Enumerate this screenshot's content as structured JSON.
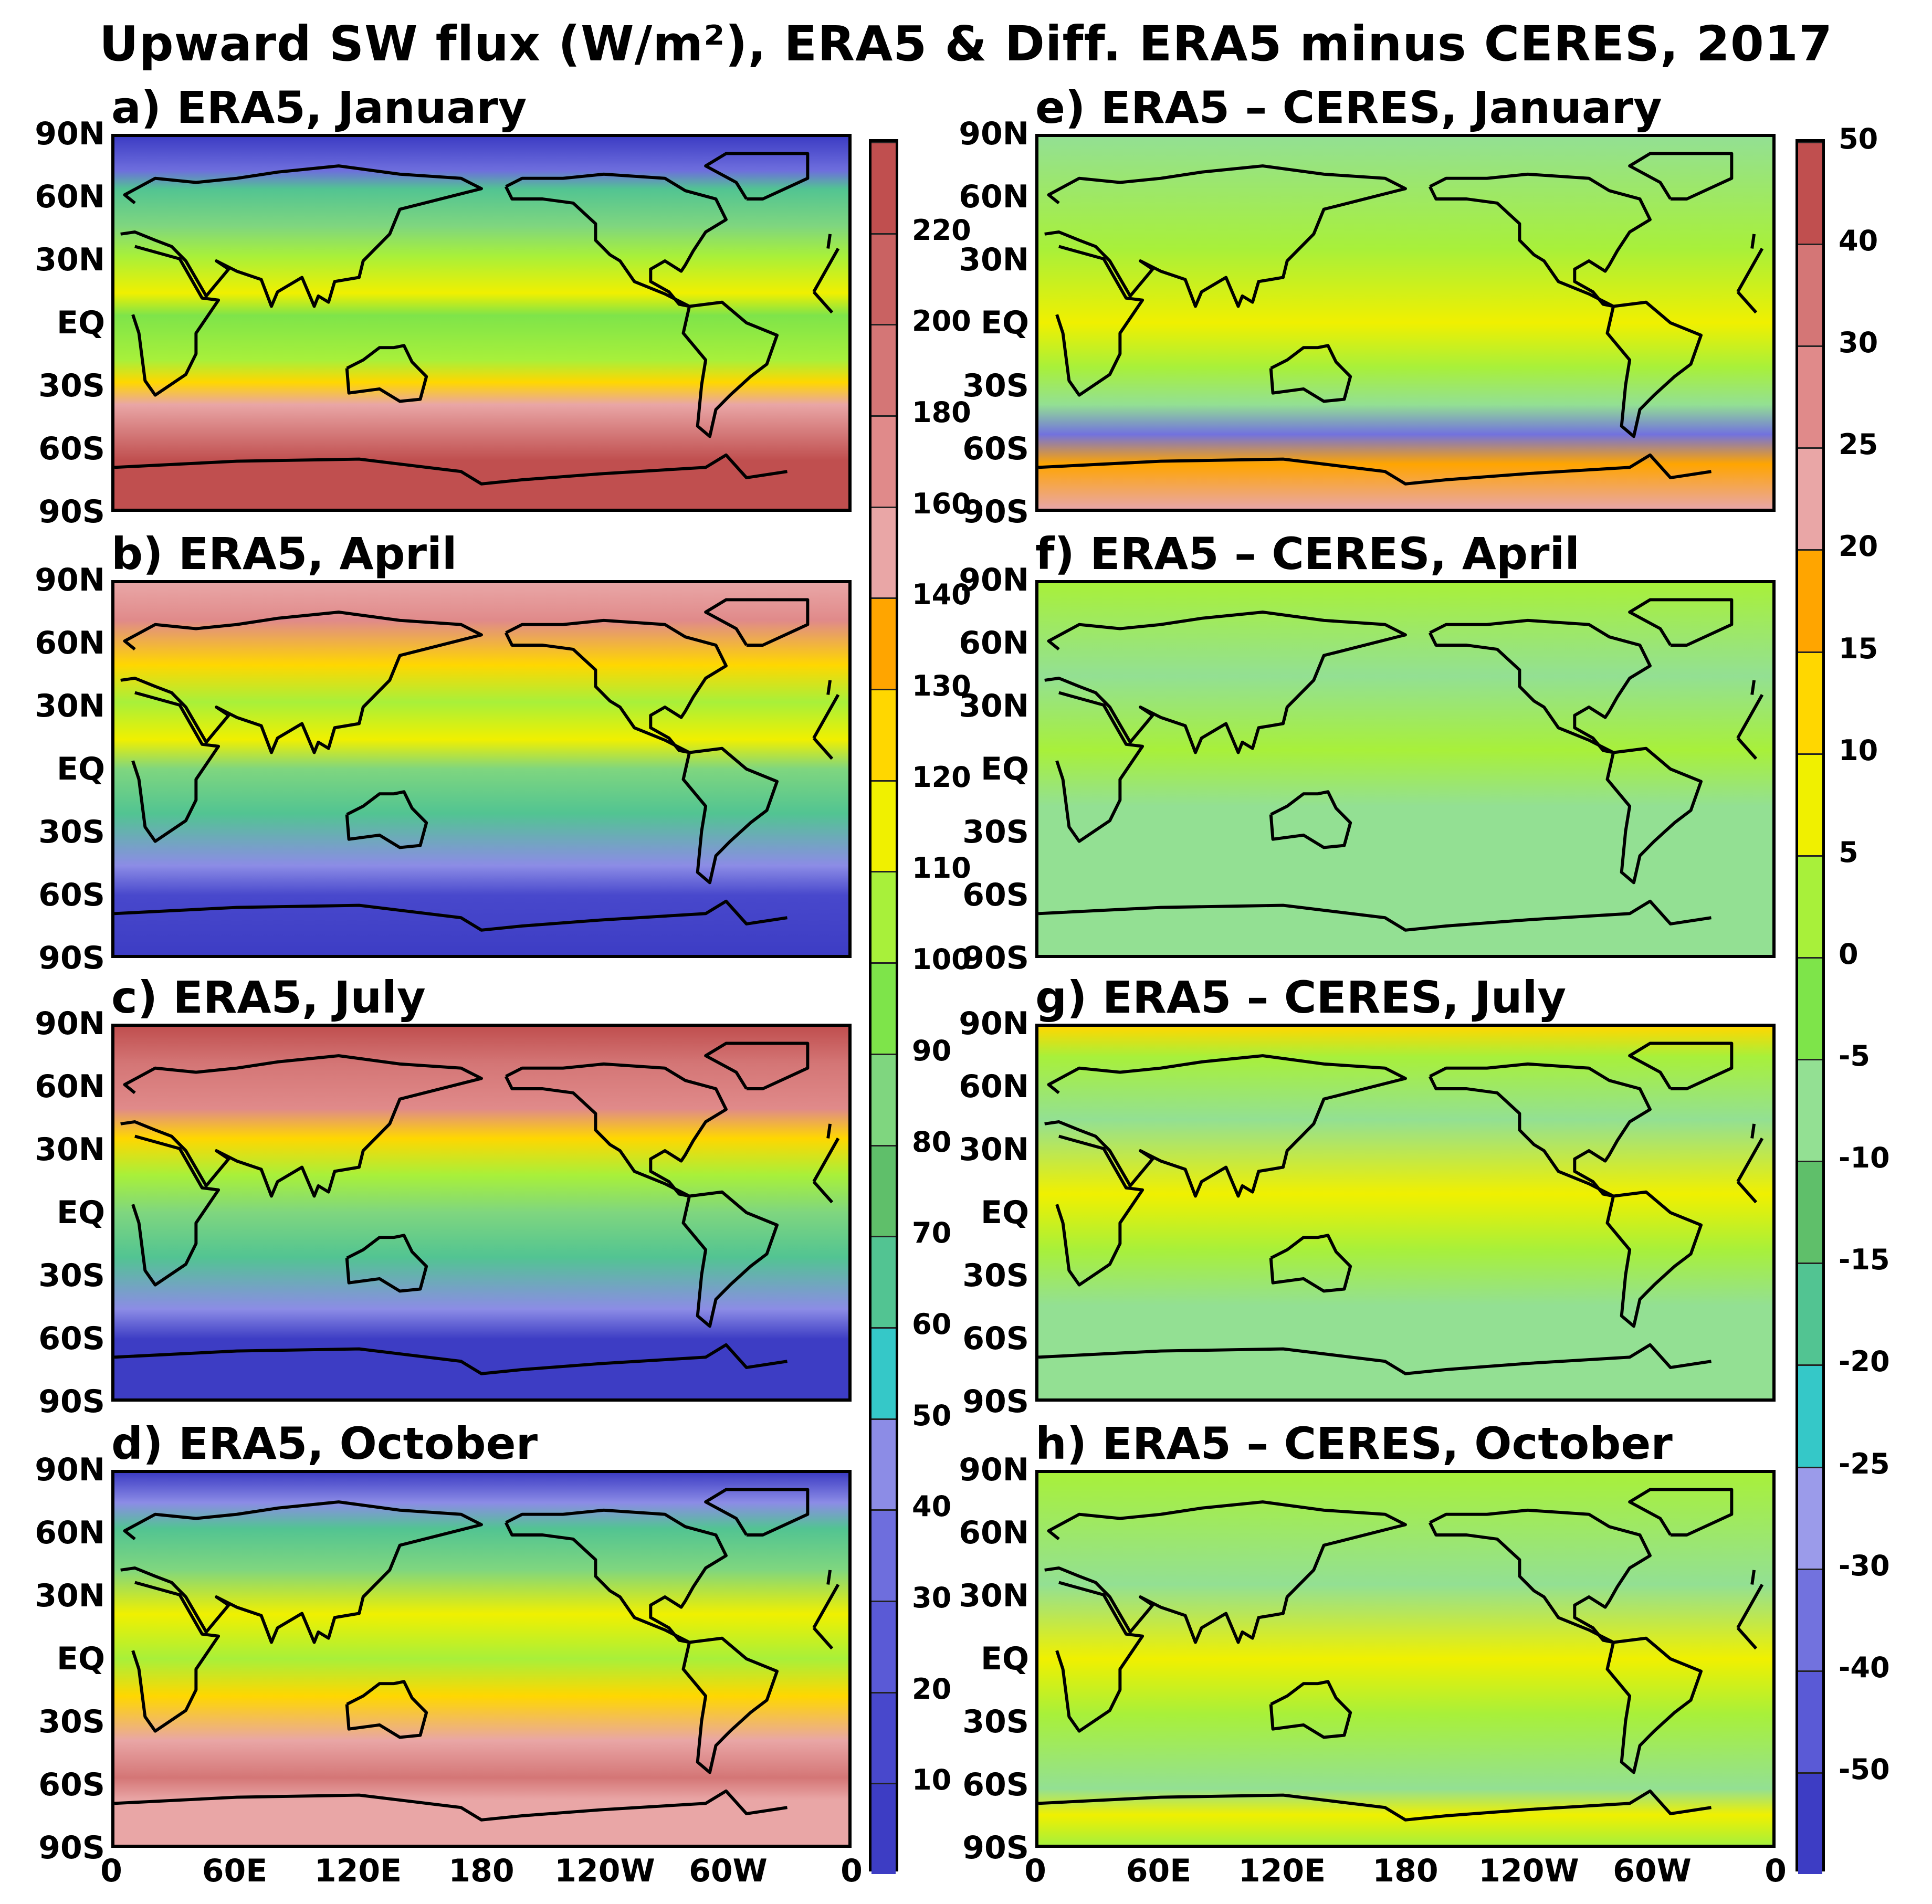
{
  "title": "Upward SW flux (W/m²), ERA5 & Diff. ERA5 minus CERES, 2017",
  "panels": [
    {
      "id": "a",
      "title": "a) ERA5, January",
      "kind": "era5",
      "month": "January"
    },
    {
      "id": "b",
      "title": "b) ERA5, April",
      "kind": "era5",
      "month": "April"
    },
    {
      "id": "c",
      "title": "c) ERA5, July",
      "kind": "era5",
      "month": "July"
    },
    {
      "id": "d",
      "title": "d) ERA5, October",
      "kind": "era5",
      "month": "October"
    },
    {
      "id": "e",
      "title": "e) ERA5 – CERES, January",
      "kind": "diff",
      "month": "January"
    },
    {
      "id": "f",
      "title": "f) ERA5 – CERES, April",
      "kind": "diff",
      "month": "April"
    },
    {
      "id": "g",
      "title": "g) ERA5 – CERES, July",
      "kind": "diff",
      "month": "July"
    },
    {
      "id": "h",
      "title": "h) ERA5 – CERES, October",
      "kind": "diff",
      "month": "October"
    }
  ],
  "lat_labels": [
    "90N",
    "60N",
    "30N",
    "EQ",
    "30S",
    "60S",
    "90S"
  ],
  "lon_labels": [
    "0",
    "60E",
    "120E",
    "180",
    "120W",
    "60W",
    "0"
  ],
  "colorbar_era5": {
    "labels": [
      "10",
      "20",
      "30",
      "40",
      "50",
      "60",
      "70",
      "80",
      "90",
      "100",
      "110",
      "120",
      "130",
      "140",
      "160",
      "180",
      "200",
      "220"
    ],
    "colors": [
      "#3d3dc4",
      "#4848cc",
      "#5a5ad6",
      "#6e6edd",
      "#8c8ce6",
      "#35c8c8",
      "#52c492",
      "#5fbf6a",
      "#7fd67f",
      "#7ee44a",
      "#a8f03a",
      "#f0f000",
      "#ffd700",
      "#ffa500",
      "#e9a6a6",
      "#e08a8a",
      "#d47676",
      "#c96262",
      "#c04f4f"
    ]
  },
  "colorbar_diff": {
    "labels": [
      "-50",
      "-40",
      "-30",
      "-25",
      "-20",
      "-15",
      "-10",
      "-5",
      "0",
      "5",
      "10",
      "15",
      "20",
      "25",
      "30",
      "40",
      "50"
    ],
    "colors": [
      "#3d3dc4",
      "#5a5ad6",
      "#7272de",
      "#9b9bea",
      "#35c8c8",
      "#52c492",
      "#5fbf6a",
      "#93e093",
      "#7ee44a",
      "#a8f03a",
      "#f0f000",
      "#ffd700",
      "#ffa500",
      "#e9a6a6",
      "#e08a8a",
      "#d47676",
      "#c04f4f"
    ]
  },
  "chart_data": [
    {
      "type": "heatmap",
      "title": "Upward SW flux (W/m²), ERA5 & Diff. ERA5 minus CERES, 2017",
      "panels": [
        "a) ERA5, January",
        "b) ERA5, April",
        "c) ERA5, July",
        "d) ERA5, October"
      ],
      "colorbar_levels": [
        10,
        20,
        30,
        40,
        50,
        60,
        70,
        80,
        90,
        100,
        110,
        120,
        130,
        140,
        160,
        180,
        200,
        220
      ],
      "x_ticks": [
        "0",
        "60E",
        "120E",
        "180",
        "120W",
        "60W",
        "0"
      ],
      "y_ticks": [
        "90N",
        "60N",
        "30N",
        "EQ",
        "30S",
        "60S",
        "90S"
      ]
    },
    {
      "type": "heatmap",
      "panels": [
        "e) ERA5 – CERES, January",
        "f) ERA5 – CERES, April",
        "g) ERA5 – CERES, July",
        "h) ERA5 – CERES, October"
      ],
      "colorbar_levels": [
        -50,
        -40,
        -30,
        -25,
        -20,
        -15,
        -10,
        -5,
        0,
        5,
        10,
        15,
        20,
        25,
        30,
        40,
        50
      ],
      "x_ticks": [
        "0",
        "60E",
        "120E",
        "180",
        "120W",
        "60W",
        "0"
      ],
      "y_ticks": [
        "90N",
        "60N",
        "30N",
        "EQ",
        "30S",
        "60S",
        "90S"
      ]
    }
  ]
}
